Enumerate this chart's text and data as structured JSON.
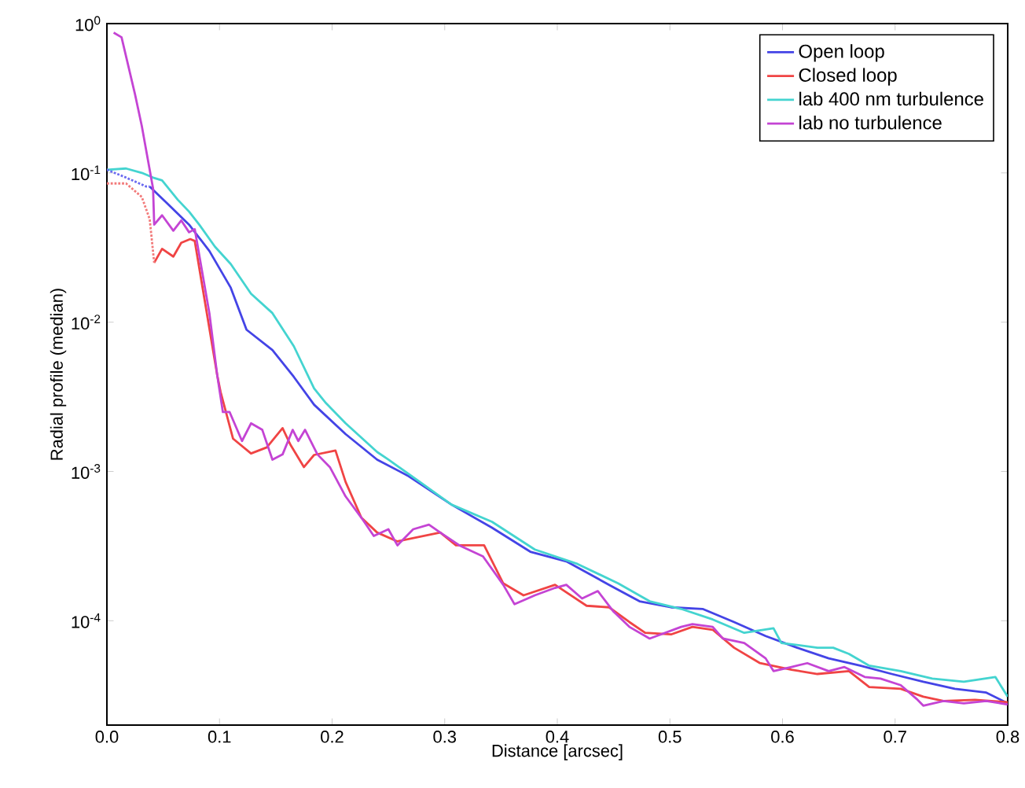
{
  "chart_data": {
    "type": "line",
    "xlabel": "Distance [arcsec]",
    "ylabel": "Radial profile (median)",
    "log": "y",
    "grid": false,
    "legend": "top right",
    "marker": "none",
    "xlim": [
      0,
      0.8
    ],
    "ylim": [
      2e-05,
      1
    ],
    "xticks": [
      {
        "value": 0,
        "label": "0.0"
      },
      0.1,
      0.2,
      0.3,
      0.4,
      0.5,
      0.6,
      0.7,
      0.8
    ],
    "yticks": [
      {
        "value": 1,
        "label": "10$^{0}$"
      },
      {
        "value": 0.1,
        "label": "10$^{-1}$"
      },
      {
        "value": 0.01,
        "label": "10$^{-2}$"
      },
      {
        "value": 0.001,
        "label": "10$^{-3}$"
      },
      {
        "value": 0.0001,
        "label": "10$^{-4}$"
      }
    ],
    "series": [
      {
        "name": "Open loop",
        "color": "#4444e6",
        "line_style": "solid",
        "x": [
          0.038,
          0.054,
          0.073,
          0.091,
          0.11,
          0.124,
          0.147,
          0.166,
          0.184,
          0.212,
          0.24,
          0.268,
          0.306,
          0.342,
          0.376,
          0.408,
          0.446,
          0.473,
          0.501,
          0.529,
          0.557,
          0.585,
          0.613,
          0.641,
          0.669,
          0.697,
          0.725,
          0.753,
          0.781,
          0.8
        ],
        "values": [
          0.081,
          0.062,
          0.045,
          0.03,
          0.017,
          0.0089,
          0.0065,
          0.0043,
          0.0028,
          0.00178,
          0.0012,
          0.00093,
          0.0006,
          0.00042,
          0.00029,
          0.00025,
          0.000174,
          0.000135,
          0.000123,
          0.00012,
          9.8e-05,
          7.9e-05,
          6.6e-05,
          5.6e-05,
          5e-05,
          4.4e-05,
          3.9e-05,
          3.5e-05,
          3.3e-05,
          2.8e-05
        ]
      },
      {
        "name": "Closed loop",
        "color": "#f04444",
        "line_style": "solid",
        "x": [
          0.042,
          0.049,
          0.059,
          0.066,
          0.074,
          0.078,
          0.098,
          0.101,
          0.112,
          0.128,
          0.142,
          0.156,
          0.163,
          0.175,
          0.184,
          0.203,
          0.212,
          0.226,
          0.24,
          0.258,
          0.296,
          0.31,
          0.335,
          0.352,
          0.37,
          0.398,
          0.426,
          0.446,
          0.464,
          0.478,
          0.501,
          0.52,
          0.538,
          0.557,
          0.58,
          0.608,
          0.631,
          0.659,
          0.677,
          0.705,
          0.725,
          0.743,
          0.771,
          0.8
        ],
        "values": [
          0.025,
          0.031,
          0.0275,
          0.034,
          0.036,
          0.035,
          0.0044,
          0.0034,
          0.00166,
          0.00132,
          0.00145,
          0.00195,
          0.00151,
          0.00107,
          0.00129,
          0.00138,
          0.00085,
          0.00049,
          0.00039,
          0.00034,
          0.00039,
          0.00032,
          0.00032,
          0.000178,
          0.000148,
          0.000174,
          0.000126,
          0.000123,
          9.8e-05,
          8.3e-05,
          8.1e-05,
          9.1e-05,
          8.7e-05,
          6.6e-05,
          5.2e-05,
          4.7e-05,
          4.4e-05,
          4.6e-05,
          3.6e-05,
          3.5e-05,
          3.1e-05,
          2.9e-05,
          2.95e-05,
          2.85e-05
        ]
      },
      {
        "name": "lab 400 nm turbulence",
        "color": "#44d4d0",
        "line_style": "solid",
        "x": [
          0,
          0.017,
          0.031,
          0.041,
          0.049,
          0.063,
          0.073,
          0.082,
          0.096,
          0.11,
          0.128,
          0.147,
          0.166,
          0.184,
          0.194,
          0.212,
          0.24,
          0.25,
          0.278,
          0.306,
          0.342,
          0.38,
          0.418,
          0.454,
          0.482,
          0.51,
          0.538,
          0.566,
          0.592,
          0.599,
          0.631,
          0.645,
          0.659,
          0.677,
          0.705,
          0.733,
          0.761,
          0.789,
          0.8
        ],
        "values": [
          0.105,
          0.107,
          0.1,
          0.093,
          0.089,
          0.066,
          0.055,
          0.045,
          0.032,
          0.0245,
          0.0155,
          0.0115,
          0.0069,
          0.0036,
          0.0029,
          0.0021,
          0.00135,
          0.0012,
          0.00085,
          0.0006,
          0.00046,
          0.0003,
          0.00024,
          0.000178,
          0.000135,
          0.00012,
          0.000102,
          8.3e-05,
          8.9e-05,
          7.1e-05,
          6.6e-05,
          6.6e-05,
          6e-05,
          5e-05,
          4.6e-05,
          4.1e-05,
          3.9e-05,
          4.2e-05,
          3.1e-05
        ]
      },
      {
        "name": "lab no turbulence",
        "color": "#c444d4",
        "line_style": "solid",
        "x": [
          0.006,
          0.013,
          0.025,
          0.031,
          0.041,
          0.042,
          0.049,
          0.059,
          0.066,
          0.073,
          0.078,
          0.091,
          0.098,
          0.103,
          0.109,
          0.12,
          0.128,
          0.138,
          0.147,
          0.156,
          0.165,
          0.17,
          0.176,
          0.187,
          0.198,
          0.212,
          0.226,
          0.237,
          0.25,
          0.258,
          0.272,
          0.286,
          0.296,
          0.313,
          0.334,
          0.352,
          0.362,
          0.38,
          0.398,
          0.408,
          0.422,
          0.436,
          0.45,
          0.464,
          0.482,
          0.51,
          0.52,
          0.538,
          0.547,
          0.566,
          0.585,
          0.592,
          0.608,
          0.622,
          0.641,
          0.655,
          0.673,
          0.687,
          0.705,
          0.719,
          0.725,
          0.743,
          0.761,
          0.781,
          0.8
        ],
        "values": [
          0.87,
          0.81,
          0.335,
          0.206,
          0.0785,
          0.045,
          0.052,
          0.041,
          0.048,
          0.04,
          0.042,
          0.0115,
          0.0044,
          0.0025,
          0.0025,
          0.0016,
          0.0021,
          0.0019,
          0.0012,
          0.0013,
          0.0019,
          0.0016,
          0.0019,
          0.0013,
          0.00107,
          0.00068,
          0.00049,
          0.00037,
          0.00041,
          0.00032,
          0.00041,
          0.00044,
          0.00039,
          0.00032,
          0.00027,
          0.000174,
          0.000129,
          0.000148,
          0.000166,
          0.000174,
          0.000141,
          0.000158,
          0.000115,
          9.1e-05,
          7.6e-05,
          9.1e-05,
          9.5e-05,
          9.1e-05,
          7.6e-05,
          7.1e-05,
          5.6e-05,
          4.6e-05,
          4.9e-05,
          5.2e-05,
          4.6e-05,
          4.9e-05,
          4.2e-05,
          4.1e-05,
          3.7e-05,
          3e-05,
          2.7e-05,
          2.9e-05,
          2.8e-05,
          2.9e-05,
          2.75e-05
        ]
      },
      {
        "color": "#6a6af0",
        "line_style": "dotted",
        "x": [
          0,
          0.017,
          0.035,
          0.038
        ],
        "values": [
          0.105,
          0.093,
          0.081,
          0.081
        ]
      },
      {
        "color": "#f27a7a",
        "line_style": "dotted",
        "x": [
          0,
          0.017,
          0.031,
          0.038,
          0.042
        ],
        "values": [
          0.085,
          0.085,
          0.069,
          0.049,
          0.025
        ]
      }
    ]
  }
}
